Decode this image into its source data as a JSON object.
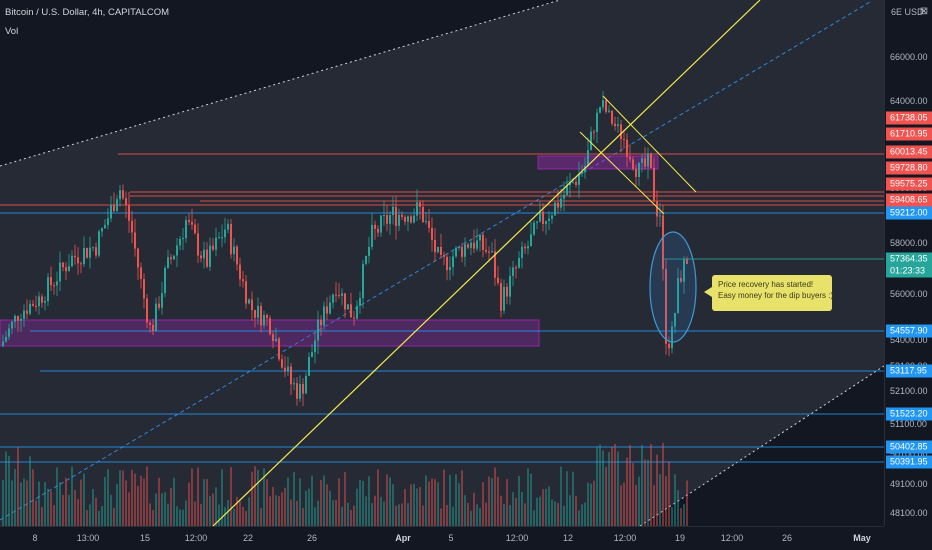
{
  "header": {
    "title": "Bitcoin / U.S. Dollar, 4h, CAPITALCOM",
    "volume_label": "Vol",
    "currency": "USD"
  },
  "colors": {
    "background": "#131722",
    "up": "#26a69a",
    "down": "#ef5350",
    "level_red": "#f05350",
    "level_blue": "#2196f3",
    "trendline": "#f5eb4d",
    "zone": "#9c27b0",
    "ellipse": "#3d9ad6",
    "note_bg": "#e8e26a"
  },
  "annotation": {
    "line1": "Price recovery has started!",
    "line2": "Easy money for the dip buyers :)"
  },
  "chart_data": {
    "type": "candlestick",
    "title": "Bitcoin / U.S. Dollar, 4h, CAPITALCOM",
    "ylabel": "USD",
    "y_scale": "log",
    "ylim": [
      47800,
      68200
    ],
    "x_ticks": [
      "8",
      "13:00",
      "15",
      "12:00",
      "22",
      "26",
      "Apr",
      "5",
      "12:00",
      "12",
      "12:00",
      "19",
      "12:00",
      "26",
      "May"
    ],
    "y_ticks": [
      48100,
      49100,
      50100,
      51100,
      52100,
      53100,
      54000,
      56000,
      58000,
      60000,
      62000,
      64000,
      66000
    ],
    "price_labels": [
      {
        "value": "61738.05",
        "color": "#f05350"
      },
      {
        "value": "61710.95",
        "color": "#f05350"
      },
      {
        "value": "60013.45",
        "color": "#f05350"
      },
      {
        "value": "59728.80",
        "color": "#f05350"
      },
      {
        "value": "59575.25",
        "color": "#f05350"
      },
      {
        "value": "59408.65",
        "color": "#f05350"
      },
      {
        "value": "59212.00",
        "color": "#2196f3"
      },
      {
        "value": "57364.35",
        "color": "#26a69a"
      },
      {
        "value": "01:23:33",
        "color": "#26a69a"
      },
      {
        "value": "54557.90",
        "color": "#2196f3"
      },
      {
        "value": "53117.95",
        "color": "#2196f3"
      },
      {
        "value": "51523.20",
        "color": "#2196f3"
      },
      {
        "value": "50402.85",
        "color": "#2196f3"
      },
      {
        "value": "50391.95",
        "color": "#2196f3"
      }
    ],
    "last_price": 57364.35
  }
}
